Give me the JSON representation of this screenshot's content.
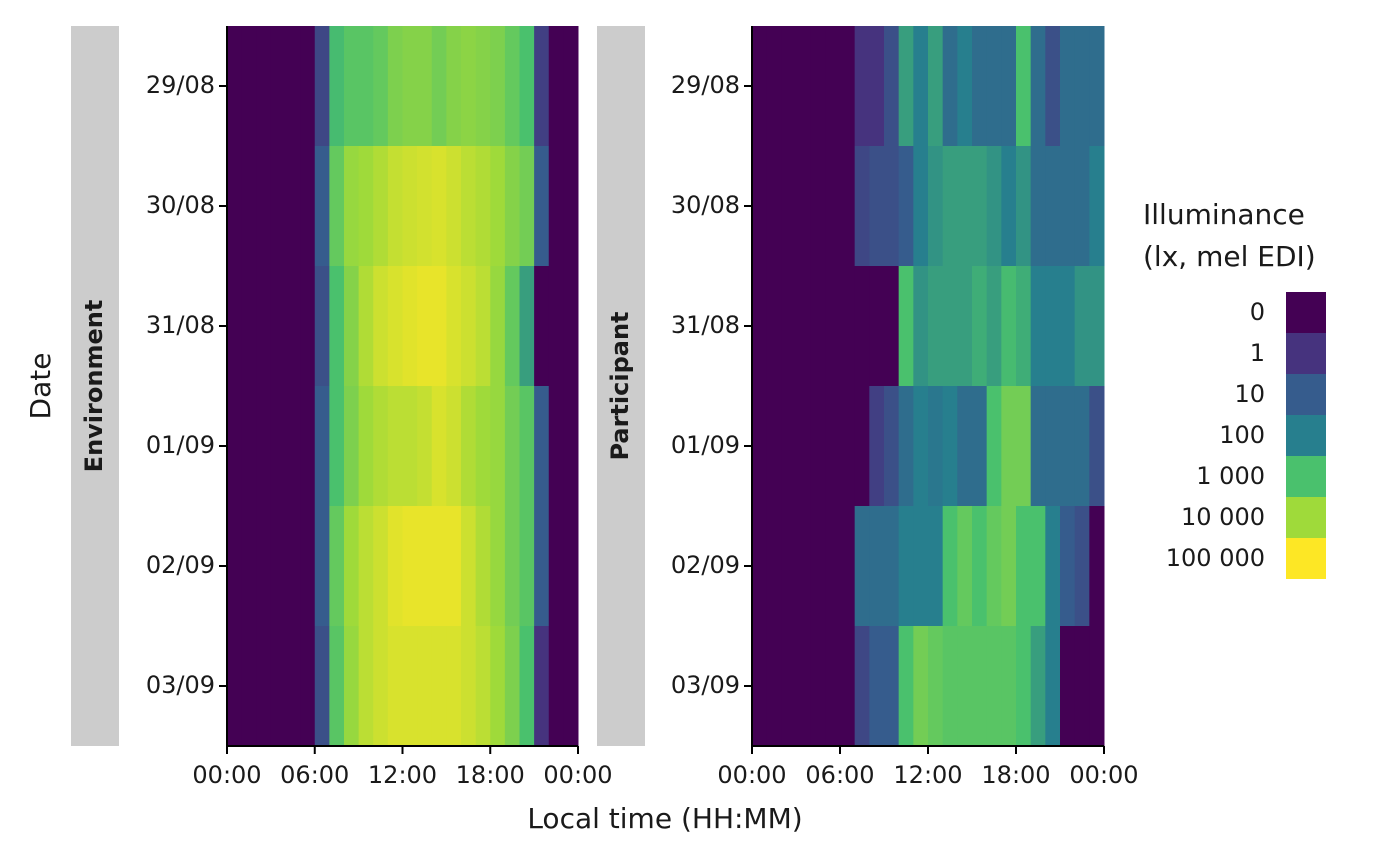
{
  "chart_data": {
    "type": "heatmap",
    "x_label": "Local time (HH:MM)",
    "y_label": "Date",
    "categories": [
      "29/08",
      "30/08",
      "31/08",
      "01/09",
      "02/09",
      "03/09"
    ],
    "xlim": [
      0,
      24
    ],
    "xticks": [
      {
        "value": 0,
        "label": "00:00"
      },
      {
        "value": 6,
        "label": "06:00"
      },
      {
        "value": 12,
        "label": "12:00"
      },
      {
        "value": 18,
        "label": "18:00"
      },
      {
        "value": 24,
        "label": "00:00"
      }
    ],
    "panels": [
      {
        "title": "Environment",
        "values": [
          [
            0,
            0,
            0,
            0,
            0,
            0,
            3,
            800,
            1500,
            1500,
            2000,
            4000,
            5000,
            5000,
            3000,
            5000,
            6000,
            5000,
            4000,
            2000,
            1000,
            2,
            0,
            0
          ],
          [
            0,
            0,
            0,
            0,
            0,
            0,
            10,
            2000,
            8000,
            10000,
            15000,
            25000,
            30000,
            35000,
            40000,
            30000,
            20000,
            15000,
            10000,
            5000,
            3000,
            10,
            0,
            0
          ],
          [
            0,
            0,
            0,
            0,
            0,
            0,
            5,
            1000,
            5000,
            15000,
            30000,
            40000,
            50000,
            60000,
            60000,
            40000,
            30000,
            20000,
            8000,
            2000,
            300,
            0,
            0,
            0
          ],
          [
            0,
            0,
            0,
            0,
            0,
            0,
            10,
            1000,
            4000,
            10000,
            15000,
            20000,
            20000,
            25000,
            40000,
            30000,
            15000,
            10000,
            8000,
            3000,
            1500,
            10,
            0,
            0
          ],
          [
            0,
            0,
            0,
            0,
            0,
            0,
            10,
            2000,
            10000,
            20000,
            30000,
            50000,
            60000,
            60000,
            60000,
            60000,
            30000,
            15000,
            8000,
            3000,
            1500,
            10,
            0,
            0
          ],
          [
            0,
            0,
            0,
            0,
            0,
            0,
            5,
            1500,
            8000,
            20000,
            30000,
            40000,
            40000,
            40000,
            40000,
            40000,
            30000,
            20000,
            10000,
            4000,
            1000,
            1,
            0,
            0
          ]
        ]
      },
      {
        "title": "Participant",
        "values": [
          [
            0,
            0,
            0,
            0,
            0,
            0,
            0,
            1,
            1,
            5,
            300,
            100,
            300,
            30,
            100,
            30,
            30,
            30,
            1000,
            30,
            5,
            30,
            30,
            30
          ],
          [
            0,
            0,
            0,
            0,
            0,
            0,
            0,
            3,
            5,
            5,
            10,
            100,
            200,
            300,
            300,
            300,
            200,
            100,
            200,
            30,
            30,
            30,
            30,
            100
          ],
          [
            0,
            0,
            0,
            0,
            0,
            0,
            0,
            0,
            0,
            0,
            1000,
            200,
            300,
            300,
            300,
            500,
            300,
            800,
            500,
            100,
            100,
            100,
            200,
            200
          ],
          [
            0,
            0,
            0,
            0,
            0,
            0,
            0,
            0,
            2,
            5,
            30,
            100,
            60,
            100,
            30,
            30,
            1000,
            3000,
            3000,
            30,
            30,
            30,
            30,
            5
          ],
          [
            0,
            0,
            0,
            0,
            0,
            0,
            0,
            30,
            30,
            30,
            100,
            100,
            100,
            1000,
            2000,
            1000,
            2000,
            3000,
            1000,
            1000,
            100,
            10,
            5,
            0
          ],
          [
            0,
            0,
            0,
            0,
            0,
            0,
            0,
            3,
            10,
            10,
            1000,
            3000,
            2000,
            1500,
            1500,
            1500,
            1500,
            1500,
            1000,
            300,
            100,
            0,
            0,
            0
          ]
        ]
      }
    ],
    "legend_title": [
      "Illuminance",
      "(lx, mel EDI)"
    ],
    "legend_ticks": [
      0,
      1,
      10,
      100,
      {
        "value": 1000,
        "label": "1 000"
      },
      {
        "value": 10000,
        "label": "10 000"
      },
      {
        "value": 100000,
        "label": "100 000"
      }
    ],
    "colors": [
      "#440154",
      "#46337e",
      "#365c8d",
      "#277f8e",
      "#4ac16d",
      "#9fda3a",
      "#fde725"
    ]
  }
}
